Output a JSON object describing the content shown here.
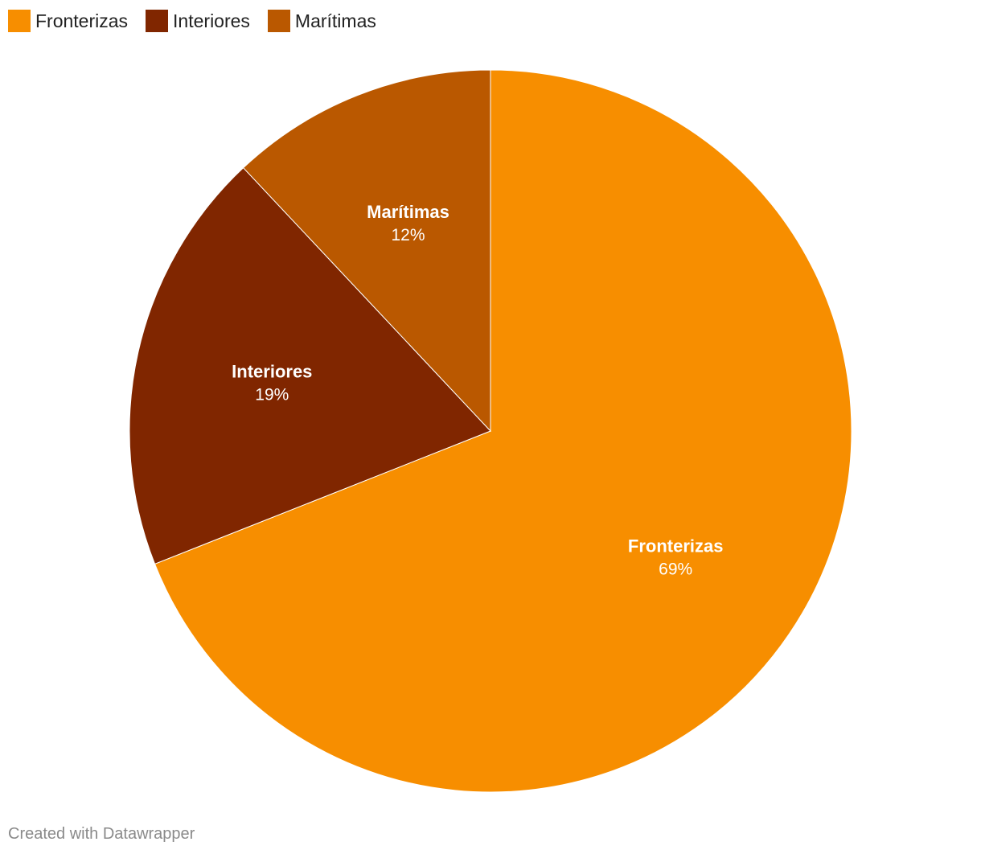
{
  "chart_data": {
    "type": "pie",
    "categories": [
      "Fronterizas",
      "Interiores",
      "Marítimas"
    ],
    "values": [
      69,
      19,
      12
    ],
    "value_labels": [
      "69%",
      "19%",
      "12%"
    ],
    "colors": [
      "#f78e00",
      "#802600",
      "#ba5800"
    ],
    "legend_position": "top-left",
    "start_angle": "12 o'clock",
    "direction": "clockwise"
  },
  "footer": {
    "credit": "Created with Datawrapper"
  }
}
